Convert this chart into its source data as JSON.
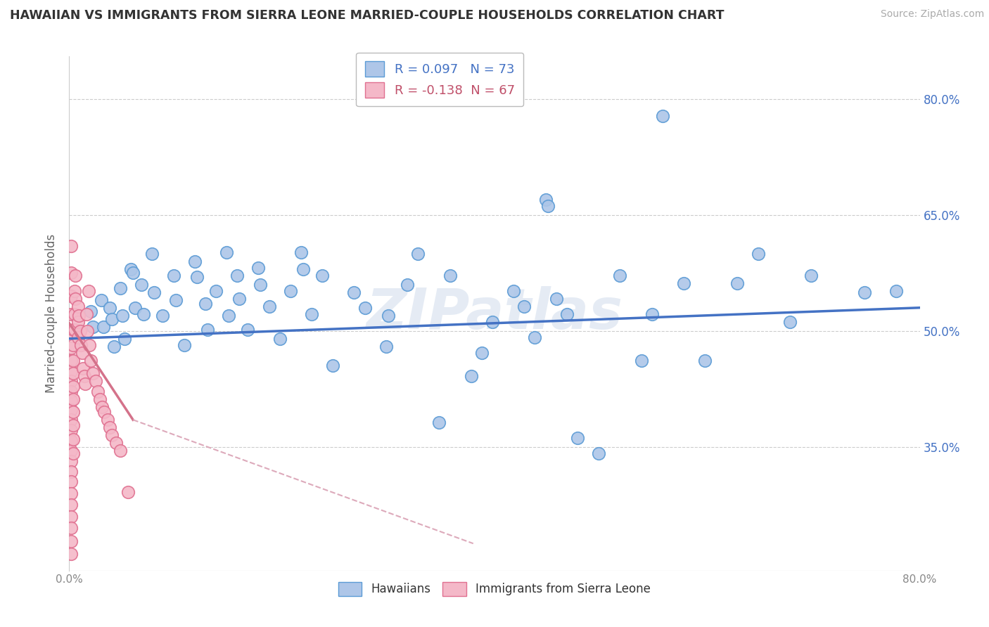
{
  "title": "HAWAIIAN VS IMMIGRANTS FROM SIERRA LEONE MARRIED-COUPLE HOUSEHOLDS CORRELATION CHART",
  "source": "Source: ZipAtlas.com",
  "ylabel": "Married-couple Households",
  "legend_entries": [
    {
      "label": "R = 0.097   N = 73",
      "color": "#aec6e8",
      "text_color": "#4472c4"
    },
    {
      "label": "R = -0.138  N = 67",
      "color": "#f4b8c8",
      "text_color": "#c0506a"
    }
  ],
  "watermark": "ZIPatlas",
  "blue_scatter": [
    [
      0.02,
      0.525
    ],
    [
      0.022,
      0.505
    ],
    [
      0.03,
      0.54
    ],
    [
      0.032,
      0.505
    ],
    [
      0.038,
      0.53
    ],
    [
      0.04,
      0.515
    ],
    [
      0.042,
      0.48
    ],
    [
      0.048,
      0.555
    ],
    [
      0.05,
      0.52
    ],
    [
      0.052,
      0.49
    ],
    [
      0.058,
      0.58
    ],
    [
      0.06,
      0.575
    ],
    [
      0.062,
      0.53
    ],
    [
      0.068,
      0.56
    ],
    [
      0.07,
      0.522
    ],
    [
      0.078,
      0.6
    ],
    [
      0.08,
      0.55
    ],
    [
      0.088,
      0.52
    ],
    [
      0.098,
      0.572
    ],
    [
      0.1,
      0.54
    ],
    [
      0.108,
      0.482
    ],
    [
      0.118,
      0.59
    ],
    [
      0.12,
      0.57
    ],
    [
      0.128,
      0.535
    ],
    [
      0.13,
      0.502
    ],
    [
      0.138,
      0.552
    ],
    [
      0.148,
      0.602
    ],
    [
      0.15,
      0.52
    ],
    [
      0.158,
      0.572
    ],
    [
      0.16,
      0.542
    ],
    [
      0.168,
      0.502
    ],
    [
      0.178,
      0.582
    ],
    [
      0.18,
      0.56
    ],
    [
      0.188,
      0.532
    ],
    [
      0.198,
      0.49
    ],
    [
      0.208,
      0.552
    ],
    [
      0.218,
      0.602
    ],
    [
      0.22,
      0.58
    ],
    [
      0.228,
      0.522
    ],
    [
      0.238,
      0.572
    ],
    [
      0.248,
      0.455
    ],
    [
      0.268,
      0.55
    ],
    [
      0.278,
      0.53
    ],
    [
      0.298,
      0.48
    ],
    [
      0.3,
      0.52
    ],
    [
      0.318,
      0.56
    ],
    [
      0.328,
      0.6
    ],
    [
      0.348,
      0.382
    ],
    [
      0.358,
      0.572
    ],
    [
      0.378,
      0.442
    ],
    [
      0.388,
      0.472
    ],
    [
      0.398,
      0.512
    ],
    [
      0.418,
      0.552
    ],
    [
      0.428,
      0.532
    ],
    [
      0.438,
      0.492
    ],
    [
      0.448,
      0.67
    ],
    [
      0.45,
      0.662
    ],
    [
      0.458,
      0.542
    ],
    [
      0.468,
      0.522
    ],
    [
      0.478,
      0.362
    ],
    [
      0.498,
      0.342
    ],
    [
      0.518,
      0.572
    ],
    [
      0.538,
      0.462
    ],
    [
      0.548,
      0.522
    ],
    [
      0.558,
      0.778
    ],
    [
      0.578,
      0.562
    ],
    [
      0.598,
      0.462
    ],
    [
      0.628,
      0.562
    ],
    [
      0.648,
      0.6
    ],
    [
      0.678,
      0.512
    ],
    [
      0.698,
      0.572
    ],
    [
      0.748,
      0.55
    ],
    [
      0.778,
      0.552
    ]
  ],
  "pink_scatter": [
    [
      0.002,
      0.61
    ],
    [
      0.002,
      0.575
    ],
    [
      0.002,
      0.545
    ],
    [
      0.002,
      0.522
    ],
    [
      0.002,
      0.498
    ],
    [
      0.002,
      0.478
    ],
    [
      0.002,
      0.462
    ],
    [
      0.002,
      0.448
    ],
    [
      0.002,
      0.435
    ],
    [
      0.002,
      0.422
    ],
    [
      0.002,
      0.41
    ],
    [
      0.002,
      0.398
    ],
    [
      0.002,
      0.385
    ],
    [
      0.002,
      0.372
    ],
    [
      0.002,
      0.358
    ],
    [
      0.002,
      0.345
    ],
    [
      0.002,
      0.332
    ],
    [
      0.002,
      0.318
    ],
    [
      0.002,
      0.305
    ],
    [
      0.002,
      0.29
    ],
    [
      0.002,
      0.275
    ],
    [
      0.002,
      0.26
    ],
    [
      0.002,
      0.245
    ],
    [
      0.002,
      0.228
    ],
    [
      0.002,
      0.212
    ],
    [
      0.004,
      0.502
    ],
    [
      0.004,
      0.482
    ],
    [
      0.004,
      0.462
    ],
    [
      0.004,
      0.445
    ],
    [
      0.004,
      0.428
    ],
    [
      0.004,
      0.412
    ],
    [
      0.004,
      0.395
    ],
    [
      0.004,
      0.378
    ],
    [
      0.004,
      0.36
    ],
    [
      0.004,
      0.342
    ],
    [
      0.005,
      0.552
    ],
    [
      0.005,
      0.522
    ],
    [
      0.005,
      0.502
    ],
    [
      0.006,
      0.572
    ],
    [
      0.006,
      0.542
    ],
    [
      0.008,
      0.532
    ],
    [
      0.008,
      0.512
    ],
    [
      0.008,
      0.492
    ],
    [
      0.009,
      0.52
    ],
    [
      0.01,
      0.5
    ],
    [
      0.011,
      0.482
    ],
    [
      0.012,
      0.472
    ],
    [
      0.013,
      0.452
    ],
    [
      0.014,
      0.442
    ],
    [
      0.015,
      0.432
    ],
    [
      0.016,
      0.522
    ],
    [
      0.017,
      0.5
    ],
    [
      0.018,
      0.552
    ],
    [
      0.019,
      0.482
    ],
    [
      0.02,
      0.462
    ],
    [
      0.022,
      0.445
    ],
    [
      0.025,
      0.435
    ],
    [
      0.027,
      0.422
    ],
    [
      0.029,
      0.412
    ],
    [
      0.031,
      0.402
    ],
    [
      0.033,
      0.395
    ],
    [
      0.036,
      0.385
    ],
    [
      0.038,
      0.375
    ],
    [
      0.04,
      0.365
    ],
    [
      0.044,
      0.355
    ],
    [
      0.048,
      0.345
    ],
    [
      0.055,
      0.292
    ]
  ],
  "blue_line": {
    "x0": 0.0,
    "y0": 0.49,
    "x1": 0.8,
    "y1": 0.53
  },
  "pink_line_solid": {
    "x0": 0.0,
    "y0": 0.51,
    "x1": 0.06,
    "y1": 0.385
  },
  "pink_line_dashed": {
    "x0": 0.06,
    "y0": 0.385,
    "x1": 0.38,
    "y1": 0.225
  },
  "xlim": [
    0.0,
    0.8
  ],
  "ylim": [
    0.19,
    0.855
  ],
  "yticks": [
    0.8,
    0.65,
    0.5,
    0.35
  ],
  "xtick_positions": [
    0.0,
    0.1,
    0.2,
    0.3,
    0.4,
    0.5,
    0.6,
    0.7,
    0.8
  ],
  "blue_dot_color": "#5b9bd5",
  "blue_dot_fill": "#adc6e8",
  "pink_dot_color": "#e07090",
  "pink_dot_fill": "#f4b8c8",
  "trend_blue": "#4472c4",
  "trend_pink": "#d4728a",
  "trend_pink_dashed": "#ddaabb",
  "background": "#ffffff",
  "grid_color": "#cccccc",
  "title_color": "#333333",
  "ylabel_color": "#666666",
  "ytick_color": "#4472c4",
  "xtick_color": "#888888"
}
